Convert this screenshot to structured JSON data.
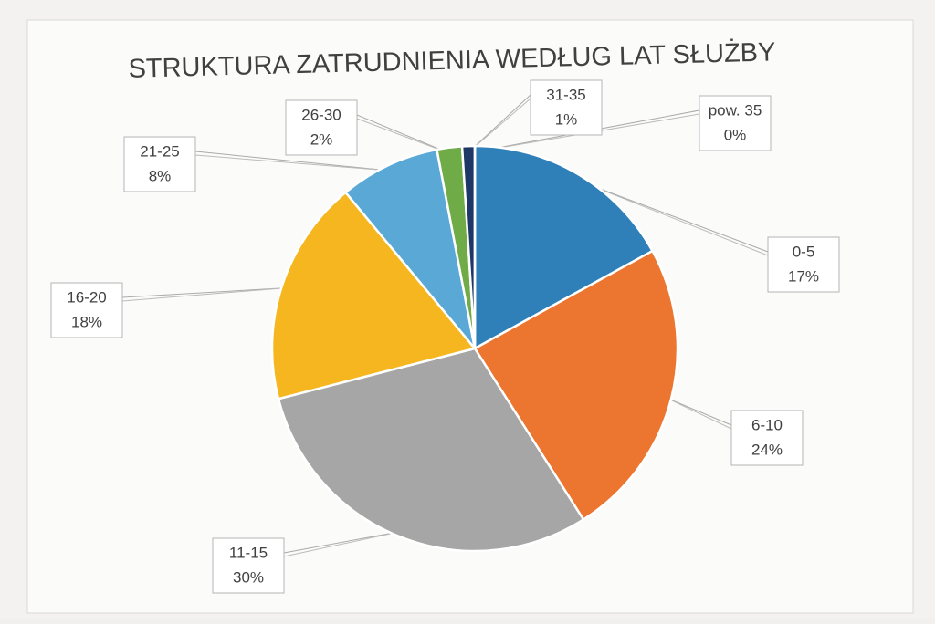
{
  "chart_data": {
    "type": "pie",
    "title": "STRUKTURA ZATRUDNIENIA WEDŁUG LAT SŁUŻBY",
    "categories": [
      "0-5",
      "6-10",
      "11-15",
      "16-20",
      "21-25",
      "26-30",
      "31-35",
      "pow. 35"
    ],
    "values": [
      17,
      24,
      30,
      18,
      8,
      2,
      1,
      0
    ],
    "value_labels": [
      "17%",
      "24%",
      "30%",
      "18%",
      "8%",
      "2%",
      "1%",
      "0%"
    ],
    "colors": [
      "#2f80b9",
      "#ec7530",
      "#a6a6a6",
      "#f6b61f",
      "#5aa8d5",
      "#6fac47",
      "#1e3766",
      "#4a7ab0"
    ]
  }
}
